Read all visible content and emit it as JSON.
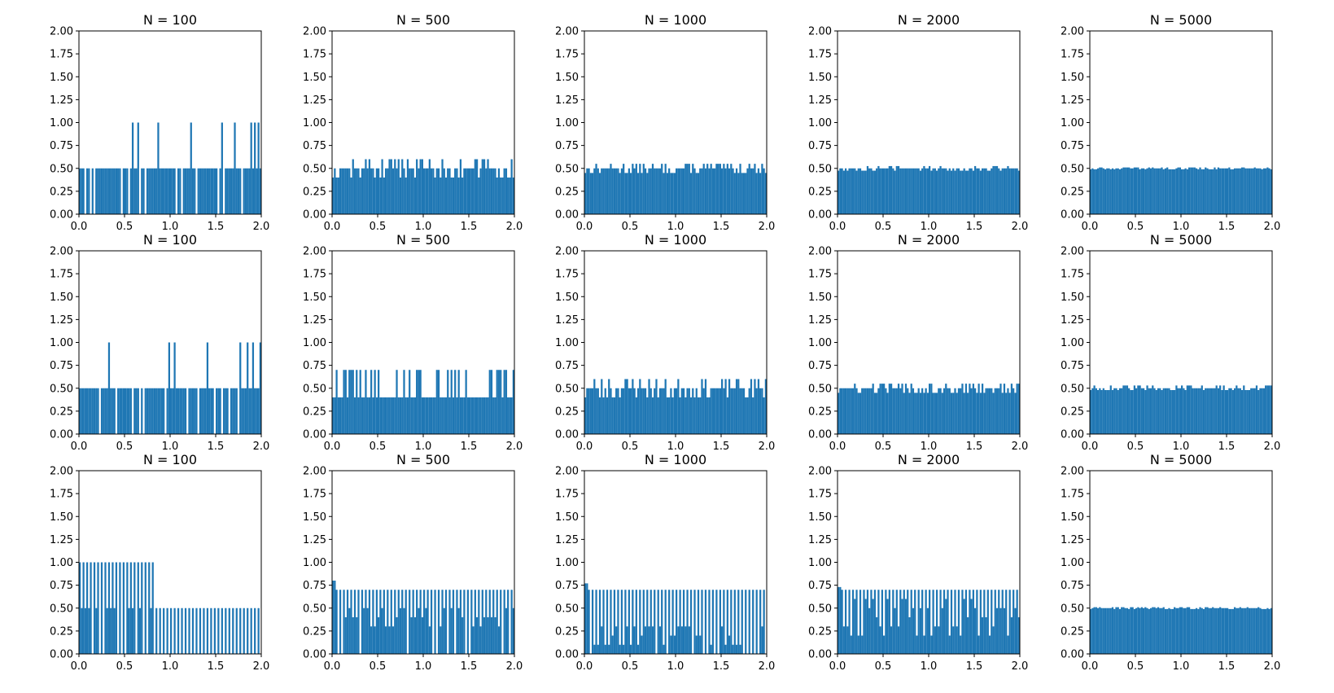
{
  "figure": {
    "bar_color": "#1f77b4",
    "frame_color": "#000000",
    "background": "#ffffff"
  },
  "chart_data": [
    {
      "type": "bar",
      "row": 1,
      "title": "N = 100",
      "pattern": "sparse_spikes",
      "base": 0.5,
      "spike": 1.0,
      "gap_fraction": 0.35,
      "seed": 11,
      "bins": 100,
      "xlim": [
        0,
        2
      ],
      "ylim": [
        0,
        2
      ],
      "xticks": [
        "0.0",
        "0.5",
        "1.0",
        "1.5",
        "2.0"
      ],
      "yticks": [
        "0.00",
        "0.25",
        "0.50",
        "0.75",
        "1.00",
        "1.25",
        "1.50",
        "1.75",
        "2.00"
      ]
    },
    {
      "type": "bar",
      "row": 1,
      "title": "N = 500",
      "pattern": "noisy_uniform",
      "base": 0.5,
      "low": 0.4,
      "high": 0.6,
      "seed": 12,
      "bins": 100,
      "xlim": [
        0,
        2
      ],
      "ylim": [
        0,
        2
      ],
      "xticks": [
        "0.0",
        "0.5",
        "1.0",
        "1.5",
        "2.0"
      ],
      "yticks": [
        "0.00",
        "0.25",
        "0.50",
        "0.75",
        "1.00",
        "1.25",
        "1.50",
        "1.75",
        "2.00"
      ]
    },
    {
      "type": "bar",
      "row": 1,
      "title": "N = 1000",
      "pattern": "noisy_uniform",
      "base": 0.5,
      "low": 0.45,
      "high": 0.55,
      "seed": 13,
      "bins": 100,
      "xlim": [
        0,
        2
      ],
      "ylim": [
        0,
        2
      ],
      "xticks": [
        "0.0",
        "0.5",
        "1.0",
        "1.5",
        "2.0"
      ],
      "yticks": [
        "0.00",
        "0.25",
        "0.50",
        "0.75",
        "1.00",
        "1.25",
        "1.50",
        "1.75",
        "2.00"
      ]
    },
    {
      "type": "bar",
      "row": 1,
      "title": "N = 2000",
      "pattern": "noisy_uniform",
      "base": 0.5,
      "low": 0.475,
      "high": 0.525,
      "seed": 14,
      "bins": 100,
      "xlim": [
        0,
        2
      ],
      "ylim": [
        0,
        2
      ],
      "xticks": [
        "0.0",
        "0.5",
        "1.0",
        "1.5",
        "2.0"
      ],
      "yticks": [
        "0.00",
        "0.25",
        "0.50",
        "0.75",
        "1.00",
        "1.25",
        "1.50",
        "1.75",
        "2.00"
      ]
    },
    {
      "type": "bar",
      "row": 1,
      "title": "N = 5000",
      "pattern": "noisy_uniform",
      "base": 0.5,
      "low": 0.49,
      "high": 0.51,
      "seed": 15,
      "bins": 100,
      "xlim": [
        0,
        2
      ],
      "ylim": [
        0,
        2
      ],
      "xticks": [
        "0.0",
        "0.5",
        "1.0",
        "1.5",
        "2.0"
      ],
      "yticks": [
        "0.00",
        "0.25",
        "0.50",
        "0.75",
        "1.00",
        "1.25",
        "1.50",
        "1.75",
        "2.00"
      ]
    },
    {
      "type": "bar",
      "row": 2,
      "title": "N = 100",
      "pattern": "sparse_spikes",
      "base": 0.5,
      "spike": 1.0,
      "gap_fraction": 0.35,
      "seed": 21,
      "bins": 100,
      "xlim": [
        0,
        2
      ],
      "ylim": [
        0,
        2
      ],
      "xticks": [
        "0.0",
        "0.5",
        "1.0",
        "1.5",
        "2.0"
      ],
      "yticks": [
        "0.00",
        "0.25",
        "0.50",
        "0.75",
        "1.00",
        "1.25",
        "1.50",
        "1.75",
        "2.00"
      ]
    },
    {
      "type": "bar",
      "row": 2,
      "title": "N = 500",
      "pattern": "noisy_uniform",
      "base": 0.4,
      "low": 0.4,
      "high": 0.7,
      "seed": 22,
      "bins": 100,
      "xlim": [
        0,
        2
      ],
      "ylim": [
        0,
        2
      ],
      "xticks": [
        "0.0",
        "0.5",
        "1.0",
        "1.5",
        "2.0"
      ],
      "yticks": [
        "0.00",
        "0.25",
        "0.50",
        "0.75",
        "1.00",
        "1.25",
        "1.50",
        "1.75",
        "2.00"
      ]
    },
    {
      "type": "bar",
      "row": 2,
      "title": "N = 1000",
      "pattern": "noisy_uniform",
      "base": 0.5,
      "low": 0.4,
      "high": 0.6,
      "seed": 23,
      "bins": 100,
      "xlim": [
        0,
        2
      ],
      "ylim": [
        0,
        2
      ],
      "xticks": [
        "0.0",
        "0.5",
        "1.0",
        "1.5",
        "2.0"
      ],
      "yticks": [
        "0.00",
        "0.25",
        "0.50",
        "0.75",
        "1.00",
        "1.25",
        "1.50",
        "1.75",
        "2.00"
      ]
    },
    {
      "type": "bar",
      "row": 2,
      "title": "N = 2000",
      "pattern": "noisy_uniform",
      "base": 0.5,
      "low": 0.45,
      "high": 0.55,
      "seed": 24,
      "bins": 100,
      "xlim": [
        0,
        2
      ],
      "ylim": [
        0,
        2
      ],
      "xticks": [
        "0.0",
        "0.5",
        "1.0",
        "1.5",
        "2.0"
      ],
      "yticks": [
        "0.00",
        "0.25",
        "0.50",
        "0.75",
        "1.00",
        "1.25",
        "1.50",
        "1.75",
        "2.00"
      ]
    },
    {
      "type": "bar",
      "row": 2,
      "title": "N = 5000",
      "pattern": "noisy_uniform",
      "base": 0.5,
      "low": 0.48,
      "high": 0.53,
      "seed": 25,
      "bins": 100,
      "xlim": [
        0,
        2
      ],
      "ylim": [
        0,
        2
      ],
      "xticks": [
        "0.0",
        "0.5",
        "1.0",
        "1.5",
        "2.0"
      ],
      "yticks": [
        "0.00",
        "0.25",
        "0.50",
        "0.75",
        "1.00",
        "1.25",
        "1.50",
        "1.75",
        "2.00"
      ]
    },
    {
      "type": "bar",
      "row": 3,
      "title": "N = 100",
      "pattern": "step_combs",
      "split_x": 0.82,
      "left_high": 1.0,
      "left_low": 0.5,
      "right_high": 0.5,
      "seed": 31,
      "bins": 100,
      "xlim": [
        0,
        2
      ],
      "ylim": [
        0,
        2
      ],
      "xticks": [
        "0.0",
        "0.5",
        "1.0",
        "1.5",
        "2.0"
      ],
      "yticks": [
        "0.00",
        "0.25",
        "0.50",
        "0.75",
        "1.00",
        "1.25",
        "1.50",
        "1.75",
        "2.00"
      ]
    },
    {
      "type": "bar",
      "row": 3,
      "title": "N = 500",
      "pattern": "combs",
      "high": 0.7,
      "low_choices": [
        0.0,
        0.3,
        0.4,
        0.5
      ],
      "first_high": 0.8,
      "seed": 32,
      "bins": 100,
      "xlim": [
        0,
        2
      ],
      "ylim": [
        0,
        2
      ],
      "xticks": [
        "0.0",
        "0.5",
        "1.0",
        "1.5",
        "2.0"
      ],
      "yticks": [
        "0.00",
        "0.25",
        "0.50",
        "0.75",
        "1.00",
        "1.25",
        "1.50",
        "1.75",
        "2.00"
      ]
    },
    {
      "type": "bar",
      "row": 3,
      "title": "N = 1000",
      "pattern": "combs",
      "high": 0.7,
      "low_choices": [
        0.0,
        0.1,
        0.2,
        0.3
      ],
      "first_high": 0.77,
      "seed": 33,
      "bins": 100,
      "xlim": [
        0,
        2
      ],
      "ylim": [
        0,
        2
      ],
      "xticks": [
        "0.0",
        "0.5",
        "1.0",
        "1.5",
        "2.0"
      ],
      "yticks": [
        "0.00",
        "0.25",
        "0.50",
        "0.75",
        "1.00",
        "1.25",
        "1.50",
        "1.75",
        "2.00"
      ]
    },
    {
      "type": "bar",
      "row": 3,
      "title": "N = 2000",
      "pattern": "combs",
      "high": 0.7,
      "low_choices": [
        0.2,
        0.3,
        0.4,
        0.5,
        0.6
      ],
      "first_high": 0.73,
      "seed": 34,
      "bins": 100,
      "xlim": [
        0,
        2
      ],
      "ylim": [
        0,
        2
      ],
      "xticks": [
        "0.0",
        "0.5",
        "1.0",
        "1.5",
        "2.0"
      ],
      "yticks": [
        "0.00",
        "0.25",
        "0.50",
        "0.75",
        "1.00",
        "1.25",
        "1.50",
        "1.75",
        "2.00"
      ]
    },
    {
      "type": "bar",
      "row": 3,
      "title": "N = 5000",
      "pattern": "noisy_uniform",
      "base": 0.5,
      "low": 0.49,
      "high": 0.51,
      "seed": 35,
      "bins": 100,
      "xlim": [
        0,
        2
      ],
      "ylim": [
        0,
        2
      ],
      "xticks": [
        "0.0",
        "0.5",
        "1.0",
        "1.5",
        "2.0"
      ],
      "yticks": [
        "0.00",
        "0.25",
        "0.50",
        "0.75",
        "1.00",
        "1.25",
        "1.50",
        "1.75",
        "2.00"
      ]
    }
  ]
}
